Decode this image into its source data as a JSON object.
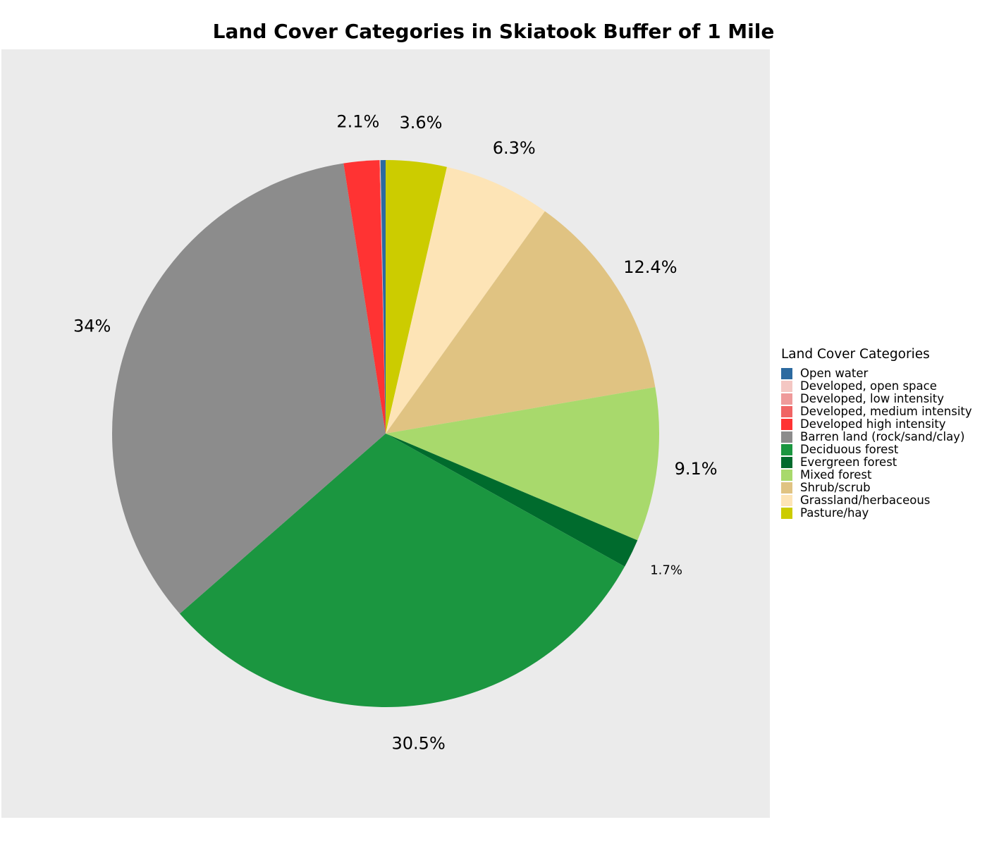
{
  "chart_data": {
    "type": "pie",
    "title": "Land Cover Categories in Skiatook Buffer of 1 Mile",
    "legend_title": "Land Cover Categories",
    "legend_position": "right",
    "start": "top",
    "direction": "clockwise",
    "categories": [
      "Open water",
      "Developed, open space",
      "Developed, low intensity",
      "Developed, medium intensity",
      "Developed high intensity",
      "Barren land (rock/sand/clay)",
      "Deciduous forest",
      "Evergreen forest",
      "Mixed forest",
      "Shrub/scrub",
      "Grassland/herbaceous",
      "Pasture/hay"
    ],
    "values": [
      0.3,
      0.02,
      0.02,
      0.02,
      2.1,
      34,
      30.5,
      1.7,
      9.1,
      12.4,
      6.3,
      3.6
    ],
    "labels": [
      "",
      "",
      "",
      "",
      "2.1%",
      "34%",
      "30.5%",
      "1.7%",
      "9.1%",
      "12.4%",
      "6.3%",
      "3.6%"
    ],
    "colors": [
      "#2c6aa0",
      "#f4c7c3",
      "#ef9a9a",
      "#f06464",
      "#ff3333",
      "#8c8c8c",
      "#1b9640",
      "#006b2d",
      "#a8d96c",
      "#e0c382",
      "#fde4b6",
      "#cccc00"
    ]
  }
}
